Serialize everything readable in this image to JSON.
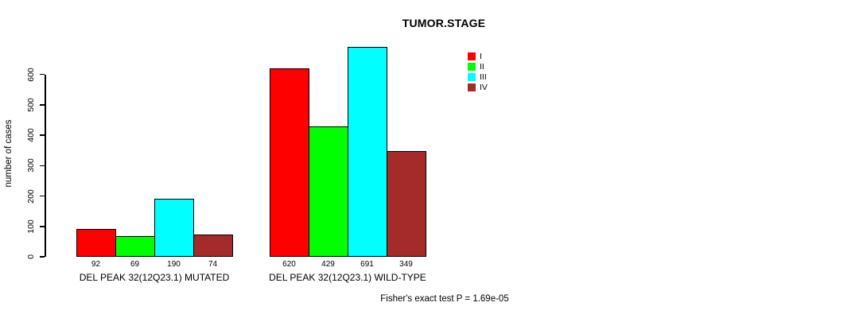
{
  "chart_data": {
    "type": "bar",
    "title": "TUMOR.STAGE",
    "ylabel": "number of cases",
    "xlabel": "",
    "ylim": [
      0,
      600
    ],
    "yticks": [
      0,
      100,
      200,
      300,
      400,
      500,
      600
    ],
    "grid": false,
    "legend_position": "top-right",
    "series_labels": [
      "I",
      "II",
      "III",
      "IV"
    ],
    "series_colors": [
      "#FF0000",
      "#00FF00",
      "#00FFFF",
      "#A52A2A"
    ],
    "groups": [
      {
        "label": "DEL PEAK 32(12Q23.1) MUTATED",
        "values": [
          92,
          69,
          190,
          74
        ]
      },
      {
        "label": "DEL PEAK 32(12Q23.1) WILD-TYPE",
        "values": [
          620,
          429,
          691,
          349
        ]
      }
    ],
    "value_labels_shown": true,
    "annotation": "Fisher's exact test P = 1.69e-05"
  }
}
